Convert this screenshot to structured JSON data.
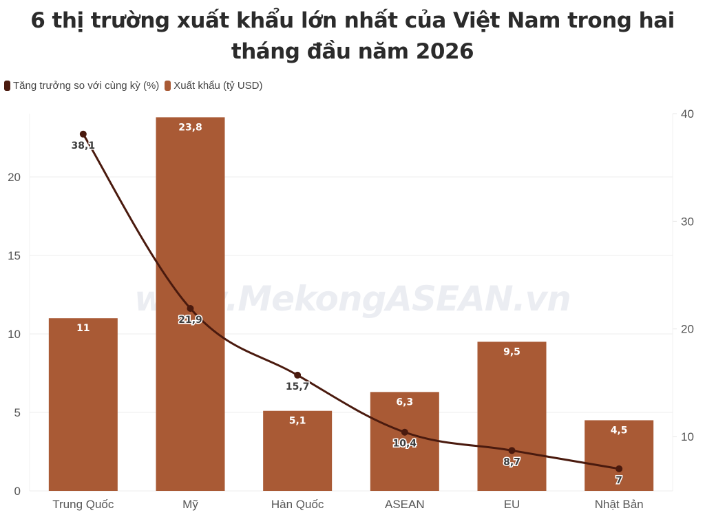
{
  "chart_data": {
    "type": "bar+line",
    "title": "6 thị trường xuất khẩu lớn nhất của Việt Nam trong hai tháng đầu năm 2026",
    "title_lines": [
      "6 thị trường xuất khẩu lớn nhất của Việt Nam trong hai",
      "tháng đầu năm 2026"
    ],
    "categories": [
      "Trung Quốc",
      "Mỹ",
      "Hàn Quốc",
      "ASEAN",
      "EU",
      "Nhật Bản"
    ],
    "series": [
      {
        "name": "Tăng trưởng so với cùng kỳ (%)",
        "type": "line",
        "axis": "right",
        "color": "#4a1a0e",
        "values": [
          38.1,
          21.9,
          15.7,
          10.4,
          8.7,
          7
        ],
        "labels": [
          "38,1",
          "21,9",
          "15,7",
          "10,4",
          "8,7",
          "7"
        ]
      },
      {
        "name": "Xuất khẩu (tỷ USD)",
        "type": "bar",
        "axis": "left",
        "color": "#a95a35",
        "values": [
          11,
          23.8,
          5.1,
          6.3,
          9.5,
          4.5
        ],
        "labels": [
          "11",
          "23,8",
          "5,1",
          "6,3",
          "9,5",
          "4,5"
        ]
      }
    ],
    "left_axis": {
      "ticks": [
        "0",
        "5",
        "10",
        "15",
        "20"
      ],
      "tick_values": [
        0,
        5,
        10,
        15,
        20
      ],
      "ylim": [
        0,
        24
      ]
    },
    "right_axis": {
      "ticks": [
        "10",
        "20",
        "30",
        "40"
      ],
      "tick_values": [
        10,
        20,
        30,
        40
      ],
      "ylim": [
        4.9,
        40
      ]
    },
    "xlabel": "",
    "ylabel": "",
    "grid": true,
    "legend_position": "top-left"
  },
  "legend": {
    "items": [
      {
        "label": "Tăng trưởng so với cùng kỳ (%)",
        "color": "#4a1a0e"
      },
      {
        "label": "Xuất khẩu (tỷ USD)",
        "color": "#a95a35"
      }
    ]
  },
  "watermark": "www.MekongASEAN.vn"
}
